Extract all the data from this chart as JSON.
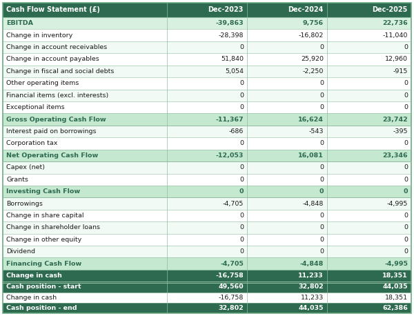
{
  "columns": [
    "Cash Flow Statement (£)",
    "Dec-2023",
    "Dec-2024",
    "Dec-2025"
  ],
  "rows": [
    {
      "label": "EBITDA",
      "values": [
        "-39,863",
        "9,756",
        "22,736"
      ],
      "type": "highlight_green"
    },
    {
      "label": "Change in inventory",
      "values": [
        "-28,398",
        "-16,802",
        "-11,040"
      ],
      "type": "normal"
    },
    {
      "label": "Change in account receivables",
      "values": [
        "0",
        "0",
        "0"
      ],
      "type": "normal"
    },
    {
      "label": "Change in account payables",
      "values": [
        "51,840",
        "25,920",
        "12,960"
      ],
      "type": "normal"
    },
    {
      "label": "Change in fiscal and social debts",
      "values": [
        "5,054",
        "-2,250",
        "-915"
      ],
      "type": "normal"
    },
    {
      "label": "Other operating items",
      "values": [
        "0",
        "0",
        "0"
      ],
      "type": "normal"
    },
    {
      "label": "Financial items (excl. interests)",
      "values": [
        "0",
        "0",
        "0"
      ],
      "type": "normal"
    },
    {
      "label": "Exceptional items",
      "values": [
        "0",
        "0",
        "0"
      ],
      "type": "normal"
    },
    {
      "label": "Gross Operating Cash Flow",
      "values": [
        "-11,367",
        "16,624",
        "23,742"
      ],
      "type": "subtotal_green"
    },
    {
      "label": "Interest paid on borrowings",
      "values": [
        "-686",
        "-543",
        "-395"
      ],
      "type": "normal"
    },
    {
      "label": "Corporation tax",
      "values": [
        "0",
        "0",
        "0"
      ],
      "type": "normal"
    },
    {
      "label": "Net Operating Cash Flow",
      "values": [
        "-12,053",
        "16,081",
        "23,346"
      ],
      "type": "subtotal_green"
    },
    {
      "label": "Capex (net)",
      "values": [
        "0",
        "0",
        "0"
      ],
      "type": "normal"
    },
    {
      "label": "Grants",
      "values": [
        "0",
        "0",
        "0"
      ],
      "type": "normal"
    },
    {
      "label": "Investing Cash Flow",
      "values": [
        "0",
        "0",
        "0"
      ],
      "type": "subtotal_green"
    },
    {
      "label": "Borrowings",
      "values": [
        "-4,705",
        "-4,848",
        "-4,995"
      ],
      "type": "normal"
    },
    {
      "label": "Change in share capital",
      "values": [
        "0",
        "0",
        "0"
      ],
      "type": "normal"
    },
    {
      "label": "Change in shareholder loans",
      "values": [
        "0",
        "0",
        "0"
      ],
      "type": "normal"
    },
    {
      "label": "Change in other equity",
      "values": [
        "0",
        "0",
        "0"
      ],
      "type": "normal"
    },
    {
      "label": "Dividend",
      "values": [
        "0",
        "0",
        "0"
      ],
      "type": "normal"
    },
    {
      "label": "Financing Cash Flow",
      "values": [
        "-4,705",
        "-4,848",
        "-4,995"
      ],
      "type": "subtotal_green"
    },
    {
      "label": "Change in cash",
      "values": [
        "-16,758",
        "11,233",
        "18,351"
      ],
      "type": "change_in_cash"
    },
    {
      "label": "Cash position - start",
      "values": [
        "49,560",
        "32,802",
        "44,035"
      ],
      "type": "bottom_bold"
    },
    {
      "label": "Change in cash",
      "values": [
        "-16,758",
        "11,233",
        "18,351"
      ],
      "type": "bottom_normal"
    },
    {
      "label": "Cash position - end",
      "values": [
        "32,802",
        "44,035",
        "62,386"
      ],
      "type": "bottom_bold"
    }
  ],
  "header_bg": "#2d6a4f",
  "header_text": "#ffffff",
  "highlight_green_bg": "#d8f0e0",
  "highlight_green_text": "#2d6a4f",
  "subtotal_green_bg": "#c5e8d0",
  "subtotal_green_text": "#2d6a4f",
  "change_in_cash_bg": "#2d6a4f",
  "change_in_cash_text": "#ffffff",
  "normal_bg": "#ffffff",
  "normal_alt_bg": "#f2faf5",
  "normal_text": "#1a1a1a",
  "bottom_bold_bg": "#2d6a4f",
  "bottom_bold_text": "#ffffff",
  "bottom_normal_bg": "#ffffff",
  "bottom_normal_text": "#1a1a1a",
  "border_color": "#8fbc9e",
  "outer_border_color": "#6aaa82",
  "figsize": [
    6.0,
    4.58
  ],
  "dpi": 100
}
